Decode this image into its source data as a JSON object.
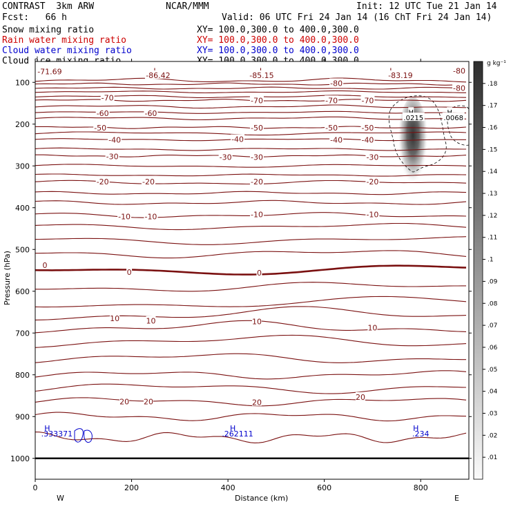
{
  "header": {
    "model": "CONTRAST  3km ARW",
    "center": "NCAR/MMM",
    "init": "Init: 12 UTC Tue 21 Jan 14",
    "fcst": "Fcst:   66 h",
    "valid": "Valid: 06 UTC Fri 24 Jan 14 (16 ChT Fri 24 Jan 14)",
    "fields": [
      {
        "name": "Snow mixing ratio",
        "xy": "XY= 100.0,300.0 to 400.0,300.0",
        "color": "#000000"
      },
      {
        "name": "Rain water mixing ratio",
        "xy": "XY= 100.0,300.0 to 400.0,300.0",
        "color": "#cc0000"
      },
      {
        "name": "Cloud water mixing ratio",
        "xy": "XY= 100.0,300.0 to 400.0,300.0",
        "color": "#0000cc"
      },
      {
        "name": "Cloud ice mixing ratio",
        "xy": "XY= 100.0,300.0 to 400.0,300.0",
        "color": "#000000"
      }
    ]
  },
  "chart_data": {
    "type": "contour",
    "xlabel": "Distance (km)",
    "ylabel": "Pressure (hPa)",
    "xlim": [
      0,
      900
    ],
    "ylim": [
      1050,
      50
    ],
    "xticks": [
      0,
      200,
      400,
      600,
      800
    ],
    "yticks": [
      100,
      200,
      300,
      400,
      500,
      600,
      700,
      800,
      900,
      1000
    ],
    "west_label": "W",
    "east_label": "E",
    "contour_color": "#7a1010",
    "contour_interval": 10,
    "contour_labels": [
      {
        "text": "-71.69",
        "x": 30,
        "p": 74
      },
      {
        "text": "L",
        "x": 250,
        "p": 72
      },
      {
        "text": "-86.42",
        "x": 255,
        "p": 83
      },
      {
        "text": "L",
        "x": 470,
        "p": 72
      },
      {
        "text": "-85.15",
        "x": 470,
        "p": 83
      },
      {
        "text": "L",
        "x": 740,
        "p": 72
      },
      {
        "text": "-83.19",
        "x": 758,
        "p": 83
      },
      {
        "text": "-80",
        "x": 880,
        "p": 72
      },
      {
        "text": "-80",
        "x": 625,
        "p": 102
      },
      {
        "text": "-80",
        "x": 880,
        "p": 114
      },
      {
        "text": "-70",
        "x": 150,
        "p": 137
      },
      {
        "text": "-70",
        "x": 460,
        "p": 143
      },
      {
        "text": "-70",
        "x": 615,
        "p": 143
      },
      {
        "text": "-70",
        "x": 690,
        "p": 143
      },
      {
        "text": "-60",
        "x": 140,
        "p": 174
      },
      {
        "text": "-60",
        "x": 240,
        "p": 174
      },
      {
        "text": "-50",
        "x": 135,
        "p": 209
      },
      {
        "text": "-50",
        "x": 460,
        "p": 209
      },
      {
        "text": "-50",
        "x": 615,
        "p": 209
      },
      {
        "text": "-50",
        "x": 690,
        "p": 209
      },
      {
        "text": "-40",
        "x": 165,
        "p": 238
      },
      {
        "text": "-40",
        "x": 420,
        "p": 236
      },
      {
        "text": "-40",
        "x": 625,
        "p": 238
      },
      {
        "text": "-40",
        "x": 690,
        "p": 238
      },
      {
        "text": "-30",
        "x": 160,
        "p": 277
      },
      {
        "text": "-30",
        "x": 395,
        "p": 279
      },
      {
        "text": "-30",
        "x": 460,
        "p": 279
      },
      {
        "text": "-30",
        "x": 700,
        "p": 279
      },
      {
        "text": "-20",
        "x": 140,
        "p": 338
      },
      {
        "text": "-20",
        "x": 235,
        "p": 338
      },
      {
        "text": "-20",
        "x": 460,
        "p": 338
      },
      {
        "text": "-20",
        "x": 700,
        "p": 338
      },
      {
        "text": "-10",
        "x": 185,
        "p": 421
      },
      {
        "text": "-10",
        "x": 240,
        "p": 421
      },
      {
        "text": "-10",
        "x": 460,
        "p": 416
      },
      {
        "text": "-10",
        "x": 700,
        "p": 416
      },
      {
        "text": "0",
        "x": 20,
        "p": 538
      },
      {
        "text": "0",
        "x": 195,
        "p": 554
      },
      {
        "text": "0",
        "x": 465,
        "p": 556
      },
      {
        "text": "10",
        "x": 165,
        "p": 665
      },
      {
        "text": "10",
        "x": 240,
        "p": 671
      },
      {
        "text": "10",
        "x": 460,
        "p": 672
      },
      {
        "text": "10",
        "x": 700,
        "p": 687
      },
      {
        "text": "20",
        "x": 185,
        "p": 864
      },
      {
        "text": "20",
        "x": 235,
        "p": 864
      },
      {
        "text": "20",
        "x": 460,
        "p": 866
      },
      {
        "text": "20",
        "x": 675,
        "p": 853
      },
      {
        "text": "H",
        "x": 780,
        "p": 171
      },
      {
        "text": ".0215",
        "x": 785,
        "p": 184
      },
      {
        "text": "H",
        "x": 860,
        "p": 171
      },
      {
        "text": ".0068",
        "x": 868,
        "p": 184
      }
    ],
    "cloud_water_labels": [
      {
        "text": "H",
        "x": 25,
        "p": 928
      },
      {
        "text": ".333371",
        "x": 45,
        "p": 941
      },
      {
        "text": "H",
        "x": 410,
        "p": 928
      },
      {
        "text": ".262111",
        "x": 420,
        "p": 941
      },
      {
        "text": "H",
        "x": 790,
        "p": 928
      },
      {
        "text": ".234",
        "x": 800,
        "p": 941
      }
    ],
    "colorbar": {
      "unit": "g kg⁻¹",
      "levels": [
        ".01",
        ".02",
        ".03",
        ".04",
        ".05",
        ".06",
        ".07",
        ".08",
        ".09",
        ".1",
        ".11",
        ".12",
        ".13",
        ".14",
        ".15",
        ".16",
        ".17",
        ".18"
      ]
    }
  }
}
